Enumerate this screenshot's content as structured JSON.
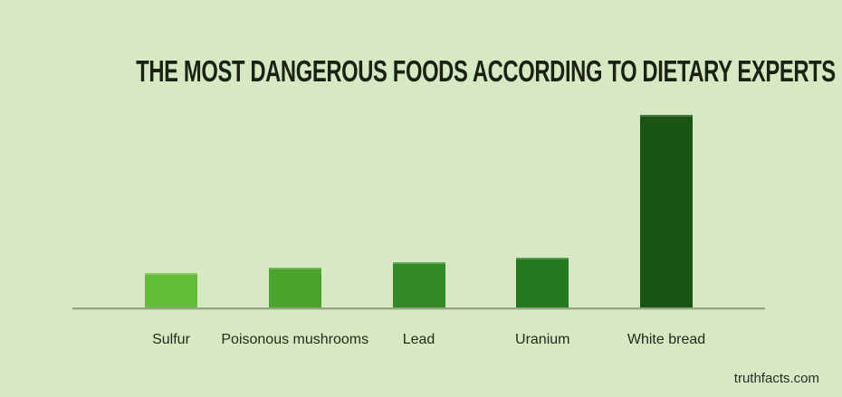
{
  "watermark": "truthfacts.com",
  "colors": {
    "background": "#d6e9c3",
    "title_text": "#1b2214",
    "label_text": "#232b1b",
    "axis_line": "#93a387",
    "watermark_text": "#2b2b2b"
  },
  "chart_data": {
    "type": "bar",
    "title": "THE MOST DANGEROUS FOODS ACCORDING TO DIETARY EXPERTS",
    "categories": [
      "Sulfur",
      "Poisonous mushrooms",
      "Lead",
      "Uranium",
      "White bread"
    ],
    "values": [
      17.8,
      20.7,
      23.5,
      25.8,
      100
    ],
    "bar_colors": [
      "#63bd37",
      "#4aa42d",
      "#318a24",
      "#22791e",
      "#1a5513"
    ],
    "xlabel": "",
    "ylabel": "",
    "ylim": [
      0,
      100
    ],
    "y_axis_visible": false,
    "x_axis_visible": true,
    "grid": false,
    "legend": false,
    "note": "humor chart, no numeric scale shown; values are relative bar heights with tallest = 100"
  }
}
